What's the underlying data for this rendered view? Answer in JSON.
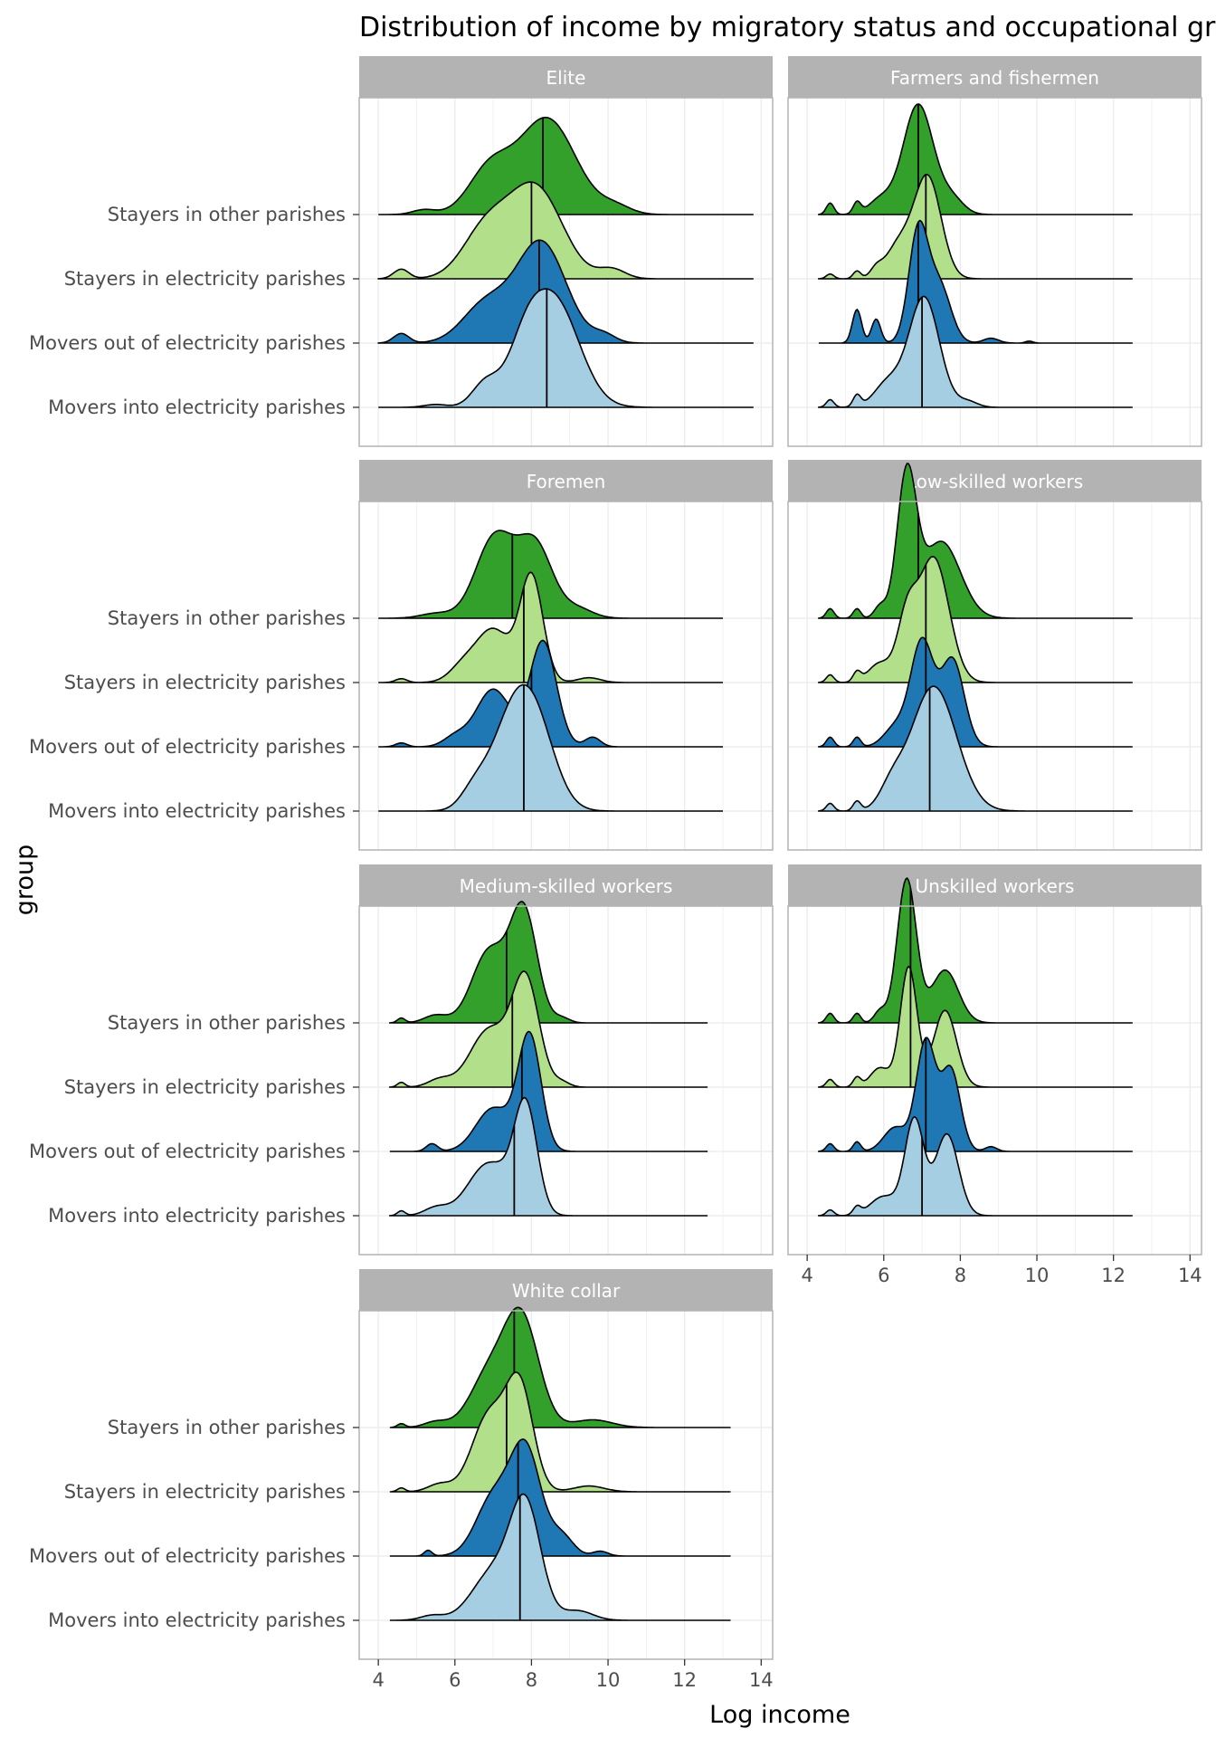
{
  "chart_data": {
    "type": "ridgeline",
    "title": "Distribution of income by migratory status and occupational group",
    "xlabel": "Log income",
    "ylabel": "group",
    "xlim": [
      3.5,
      14.3
    ],
    "xticks": [
      4,
      6,
      8,
      10,
      12,
      14
    ],
    "grid": true,
    "groups": [
      "Stayers in other parishes",
      "Stayers in electricity parishes",
      "Movers out of electricity parishes",
      "Movers into electricity parishes"
    ],
    "colors": {
      "Stayers in other parishes": "#33a02c",
      "Stayers in electricity parishes": "#b2df8a",
      "Movers out of electricity parishes": "#1f78b4",
      "Movers into electricity parishes": "#a6cee3"
    },
    "strip_color": "#b3b3b3",
    "panels": [
      {
        "title": "Elite",
        "series": [
          {
            "group": "Stayers in other parishes",
            "xmin": 4.0,
            "xmax": 13.8,
            "median": 8.3,
            "bumps": [
              [
                8.4,
                0.75,
                1.0
              ],
              [
                6.9,
                0.55,
                0.45
              ],
              [
                5.2,
                0.3,
                0.05
              ],
              [
                10.2,
                0.4,
                0.08
              ]
            ]
          },
          {
            "group": "Stayers in electricity parishes",
            "xmin": 4.0,
            "xmax": 13.8,
            "median": 8.0,
            "bumps": [
              [
                8.1,
                0.7,
                0.95
              ],
              [
                6.8,
                0.6,
                0.5
              ],
              [
                4.6,
                0.2,
                0.1
              ],
              [
                10.1,
                0.35,
                0.1
              ]
            ]
          },
          {
            "group": "Movers out of electricity parishes",
            "xmin": 4.0,
            "xmax": 13.8,
            "median": 8.2,
            "bumps": [
              [
                8.25,
                0.65,
                1.05
              ],
              [
                6.8,
                0.6,
                0.4
              ],
              [
                4.6,
                0.2,
                0.1
              ],
              [
                9.9,
                0.3,
                0.08
              ]
            ]
          },
          {
            "group": "Movers into electricity parishes",
            "xmin": 4.0,
            "xmax": 13.8,
            "median": 8.4,
            "bumps": [
              [
                8.6,
                0.65,
                1.1
              ],
              [
                7.8,
                0.45,
                0.45
              ],
              [
                6.8,
                0.35,
                0.25
              ],
              [
                5.5,
                0.3,
                0.03
              ]
            ]
          }
        ]
      },
      {
        "title": "Farmers and fishermen",
        "series": [
          {
            "group": "Stayers in other parishes",
            "xmin": 4.3,
            "xmax": 12.5,
            "median": 6.9,
            "bumps": [
              [
                6.9,
                0.4,
                1.15
              ],
              [
                5.9,
                0.3,
                0.15
              ],
              [
                4.6,
                0.1,
                0.12
              ],
              [
                5.3,
                0.1,
                0.12
              ],
              [
                7.8,
                0.3,
                0.15
              ]
            ]
          },
          {
            "group": "Stayers in electricity parishes",
            "xmin": 4.3,
            "xmax": 12.5,
            "median": 7.1,
            "bumps": [
              [
                7.15,
                0.35,
                1.05
              ],
              [
                6.4,
                0.35,
                0.35
              ],
              [
                4.6,
                0.1,
                0.05
              ],
              [
                5.3,
                0.1,
                0.08
              ],
              [
                5.8,
                0.15,
                0.08
              ]
            ]
          },
          {
            "group": "Movers out of electricity parishes",
            "xmin": 4.3,
            "xmax": 12.5,
            "median": 6.9,
            "bumps": [
              [
                6.9,
                0.25,
                1.15
              ],
              [
                7.45,
                0.3,
                0.6
              ],
              [
                5.3,
                0.12,
                0.35
              ],
              [
                5.8,
                0.12,
                0.25
              ],
              [
                8.8,
                0.2,
                0.05
              ],
              [
                9.8,
                0.1,
                0.02
              ]
            ]
          },
          {
            "group": "Movers into electricity parishes",
            "xmin": 4.3,
            "xmax": 12.5,
            "median": 7.0,
            "bumps": [
              [
                7.05,
                0.4,
                1.15
              ],
              [
                6.1,
                0.35,
                0.25
              ],
              [
                4.6,
                0.1,
                0.08
              ],
              [
                5.3,
                0.1,
                0.12
              ],
              [
                8.2,
                0.25,
                0.06
              ]
            ]
          }
        ]
      },
      {
        "title": "Foremen",
        "series": [
          {
            "group": "Stayers in other parishes",
            "xmin": 4.0,
            "xmax": 13.0,
            "median": 7.5,
            "bumps": [
              [
                7.05,
                0.5,
                0.85
              ],
              [
                8.1,
                0.45,
                0.75
              ],
              [
                9.2,
                0.4,
                0.1
              ],
              [
                5.5,
                0.4,
                0.05
              ]
            ]
          },
          {
            "group": "Stayers in electricity parishes",
            "xmin": 4.0,
            "xmax": 13.0,
            "median": 7.8,
            "bumps": [
              [
                8.0,
                0.3,
                1.1
              ],
              [
                7.0,
                0.45,
                0.55
              ],
              [
                6.2,
                0.35,
                0.15
              ],
              [
                9.5,
                0.3,
                0.05
              ],
              [
                4.6,
                0.15,
                0.04
              ]
            ]
          },
          {
            "group": "Movers out of electricity parishes",
            "xmin": 4.0,
            "xmax": 13.0,
            "median": 8.0,
            "bumps": [
              [
                8.3,
                0.35,
                1.1
              ],
              [
                7.0,
                0.45,
                0.6
              ],
              [
                6.0,
                0.3,
                0.1
              ],
              [
                9.6,
                0.2,
                0.1
              ],
              [
                4.6,
                0.15,
                0.04
              ]
            ]
          },
          {
            "group": "Movers into electricity parishes",
            "xmin": 4.0,
            "xmax": 13.0,
            "median": 7.8,
            "bumps": [
              [
                8.0,
                0.55,
                1.05
              ],
              [
                7.3,
                0.5,
                0.55
              ],
              [
                6.5,
                0.35,
                0.2
              ]
            ]
          }
        ]
      },
      {
        "title": "Low-skilled workers",
        "series": [
          {
            "group": "Stayers in other parishes",
            "xmin": 4.3,
            "xmax": 12.5,
            "median": 6.9,
            "bumps": [
              [
                6.6,
                0.25,
                1.45
              ],
              [
                7.5,
                0.5,
                0.8
              ],
              [
                4.6,
                0.1,
                0.1
              ],
              [
                5.3,
                0.1,
                0.1
              ],
              [
                5.9,
                0.15,
                0.12
              ]
            ]
          },
          {
            "group": "Stayers in electricity parishes",
            "xmin": 4.3,
            "xmax": 12.5,
            "median": 7.1,
            "bumps": [
              [
                7.3,
                0.4,
                1.3
              ],
              [
                6.6,
                0.25,
                0.6
              ],
              [
                5.9,
                0.3,
                0.2
              ],
              [
                4.6,
                0.1,
                0.08
              ],
              [
                5.3,
                0.1,
                0.1
              ]
            ]
          },
          {
            "group": "Movers out of electricity parishes",
            "xmin": 4.3,
            "xmax": 12.5,
            "median": 7.1,
            "bumps": [
              [
                7.0,
                0.3,
                1.1
              ],
              [
                7.8,
                0.3,
                0.9
              ],
              [
                6.3,
                0.3,
                0.2
              ],
              [
                4.6,
                0.1,
                0.1
              ],
              [
                5.3,
                0.1,
                0.1
              ]
            ]
          },
          {
            "group": "Movers into electricity parishes",
            "xmin": 4.3,
            "xmax": 12.5,
            "median": 7.2,
            "bumps": [
              [
                7.3,
                0.6,
                1.3
              ],
              [
                6.2,
                0.3,
                0.2
              ],
              [
                4.6,
                0.1,
                0.08
              ],
              [
                5.3,
                0.1,
                0.1
              ]
            ]
          }
        ]
      },
      {
        "title": "Medium-skilled workers",
        "series": [
          {
            "group": "Stayers in other parishes",
            "xmin": 4.3,
            "xmax": 12.6,
            "median": 7.35,
            "bumps": [
              [
                7.8,
                0.35,
                1.15
              ],
              [
                6.9,
                0.45,
                0.75
              ],
              [
                5.5,
                0.3,
                0.08
              ],
              [
                4.6,
                0.1,
                0.05
              ],
              [
                8.8,
                0.2,
                0.05
              ]
            ]
          },
          {
            "group": "Stayers in electricity parishes",
            "xmin": 4.3,
            "xmax": 12.6,
            "median": 7.5,
            "bumps": [
              [
                7.85,
                0.35,
                1.1
              ],
              [
                6.9,
                0.5,
                0.6
              ],
              [
                5.6,
                0.3,
                0.08
              ],
              [
                4.6,
                0.1,
                0.05
              ],
              [
                8.8,
                0.2,
                0.05
              ]
            ]
          },
          {
            "group": "Movers out of electricity parishes",
            "xmin": 4.3,
            "xmax": 12.6,
            "median": 7.75,
            "bumps": [
              [
                7.95,
                0.3,
                1.2
              ],
              [
                7.0,
                0.45,
                0.45
              ],
              [
                5.4,
                0.15,
                0.08
              ]
            ]
          },
          {
            "group": "Movers into electricity parishes",
            "xmin": 4.3,
            "xmax": 12.6,
            "median": 7.55,
            "bumps": [
              [
                7.85,
                0.3,
                1.1
              ],
              [
                6.9,
                0.55,
                0.55
              ],
              [
                5.5,
                0.3,
                0.08
              ],
              [
                4.6,
                0.1,
                0.05
              ]
            ]
          }
        ]
      },
      {
        "title": "Unskilled workers",
        "series": [
          {
            "group": "Stayers in other parishes",
            "xmin": 4.3,
            "xmax": 12.5,
            "median": 6.7,
            "bumps": [
              [
                6.6,
                0.25,
                1.5
              ],
              [
                7.6,
                0.35,
                0.55
              ],
              [
                4.6,
                0.1,
                0.1
              ],
              [
                5.3,
                0.1,
                0.1
              ],
              [
                5.9,
                0.15,
                0.12
              ]
            ]
          },
          {
            "group": "Stayers in electricity parishes",
            "xmin": 4.3,
            "xmax": 12.5,
            "median": 6.7,
            "bumps": [
              [
                6.65,
                0.22,
                1.25
              ],
              [
                7.6,
                0.3,
                0.8
              ],
              [
                5.9,
                0.25,
                0.2
              ],
              [
                4.6,
                0.1,
                0.08
              ],
              [
                5.3,
                0.1,
                0.1
              ]
            ]
          },
          {
            "group": "Movers out of electricity parishes",
            "xmin": 4.3,
            "xmax": 12.5,
            "median": 7.1,
            "bumps": [
              [
                7.1,
                0.25,
                1.15
              ],
              [
                7.75,
                0.25,
                0.85
              ],
              [
                6.3,
                0.3,
                0.25
              ],
              [
                5.3,
                0.1,
                0.1
              ],
              [
                4.6,
                0.1,
                0.08
              ],
              [
                8.8,
                0.15,
                0.05
              ]
            ]
          },
          {
            "group": "Movers into electricity parishes",
            "xmin": 4.3,
            "xmax": 12.5,
            "median": 7.0,
            "bumps": [
              [
                6.8,
                0.25,
                1.0
              ],
              [
                7.65,
                0.3,
                0.85
              ],
              [
                6.0,
                0.35,
                0.2
              ],
              [
                4.6,
                0.1,
                0.06
              ],
              [
                5.3,
                0.1,
                0.08
              ]
            ]
          }
        ]
      },
      {
        "title": "White collar",
        "series": [
          {
            "group": "Stayers in other parishes",
            "xmin": 4.3,
            "xmax": 13.2,
            "median": 7.55,
            "bumps": [
              [
                7.75,
                0.45,
                1.1
              ],
              [
                6.9,
                0.5,
                0.55
              ],
              [
                5.5,
                0.3,
                0.06
              ],
              [
                4.6,
                0.1,
                0.04
              ],
              [
                9.6,
                0.5,
                0.08
              ]
            ]
          },
          {
            "group": "Stayers in electricity parishes",
            "xmin": 4.3,
            "xmax": 13.2,
            "median": 7.35,
            "bumps": [
              [
                7.7,
                0.35,
                1.05
              ],
              [
                6.9,
                0.45,
                0.8
              ],
              [
                5.6,
                0.3,
                0.08
              ],
              [
                4.6,
                0.1,
                0.04
              ],
              [
                9.5,
                0.4,
                0.06
              ]
            ]
          },
          {
            "group": "Movers out of electricity parishes",
            "xmin": 4.3,
            "xmax": 13.2,
            "median": 7.65,
            "bumps": [
              [
                7.85,
                0.4,
                1.1
              ],
              [
                7.0,
                0.45,
                0.6
              ],
              [
                8.8,
                0.3,
                0.2
              ],
              [
                5.3,
                0.1,
                0.06
              ],
              [
                9.8,
                0.2,
                0.05
              ]
            ]
          },
          {
            "group": "Movers into electricity parishes",
            "xmin": 4.3,
            "xmax": 13.2,
            "median": 7.7,
            "bumps": [
              [
                7.85,
                0.4,
                1.15
              ],
              [
                7.0,
                0.55,
                0.5
              ],
              [
                5.4,
                0.3,
                0.05
              ],
              [
                9.2,
                0.4,
                0.1
              ]
            ]
          }
        ]
      }
    ]
  }
}
